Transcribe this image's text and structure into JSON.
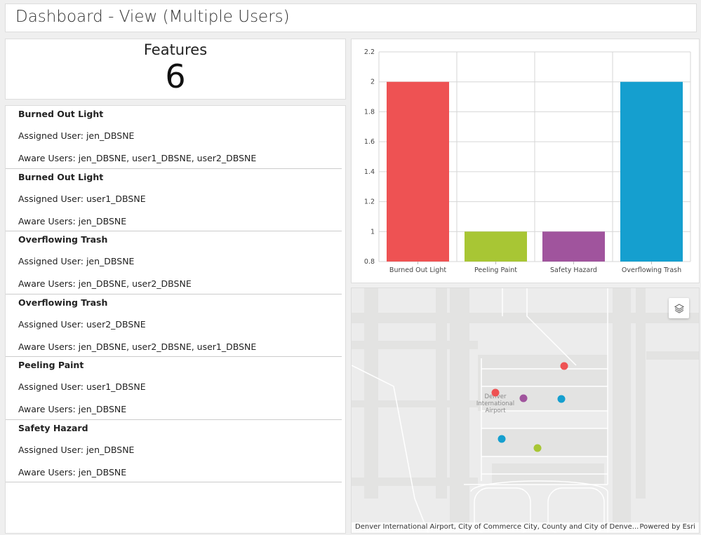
{
  "header": {
    "title": "Dashboard - View (Multiple Users)"
  },
  "indicator": {
    "label": "Features",
    "value": "6"
  },
  "list": {
    "items": [
      {
        "title": "Burned Out Light",
        "assigned": "Assigned User: jen_DBSNE",
        "aware": "Aware Users: jen_DBSNE, user1_DBSNE, user2_DBSNE"
      },
      {
        "title": "Burned Out Light",
        "assigned": "Assigned User: user1_DBSNE",
        "aware": "Aware Users: jen_DBSNE"
      },
      {
        "title": "Overflowing Trash",
        "assigned": "Assigned User: jen_DBSNE",
        "aware": "Aware Users: jen_DBSNE, user2_DBSNE"
      },
      {
        "title": "Overflowing Trash",
        "assigned": "Assigned User: user2_DBSNE",
        "aware": "Aware Users: jen_DBSNE, user2_DBSNE, user1_DBSNE"
      },
      {
        "title": "Peeling Paint",
        "assigned": "Assigned User: user1_DBSNE",
        "aware": "Aware Users: jen_DBSNE"
      },
      {
        "title": "Safety Hazard",
        "assigned": "Assigned User: jen_DBSNE",
        "aware": "Aware Users: jen_DBSNE"
      }
    ]
  },
  "chart_data": {
    "type": "bar",
    "title": "",
    "xlabel": "",
    "ylabel": "",
    "categories": [
      "Burned Out Light",
      "Peeling Paint",
      "Safety Hazard",
      "Overflowing Trash"
    ],
    "values": [
      2,
      1,
      1,
      2
    ],
    "colors": [
      "#ee5253",
      "#a8c634",
      "#a0549d",
      "#159fcf"
    ],
    "ylim": [
      0.8,
      2.2
    ],
    "yticks": [
      "0.8",
      "1",
      "1.2",
      "1.4",
      "1.6",
      "1.8",
      "2",
      "2.2"
    ],
    "grid": true
  },
  "map": {
    "place_label": [
      "Denver",
      "International",
      "Airport"
    ],
    "attribution": "Denver International Airport, City of Commerce City, County and City of Denve...",
    "powered_by": "Powered by Esri",
    "points": [
      {
        "category": "Burned Out Light",
        "color": "#ee5253"
      },
      {
        "category": "Burned Out Light",
        "color": "#ee5253"
      },
      {
        "category": "Safety Hazard",
        "color": "#a0549d"
      },
      {
        "category": "Overflowing Trash",
        "color": "#159fcf"
      },
      {
        "category": "Overflowing Trash",
        "color": "#159fcf"
      },
      {
        "category": "Peeling Paint",
        "color": "#a8c634"
      }
    ]
  }
}
